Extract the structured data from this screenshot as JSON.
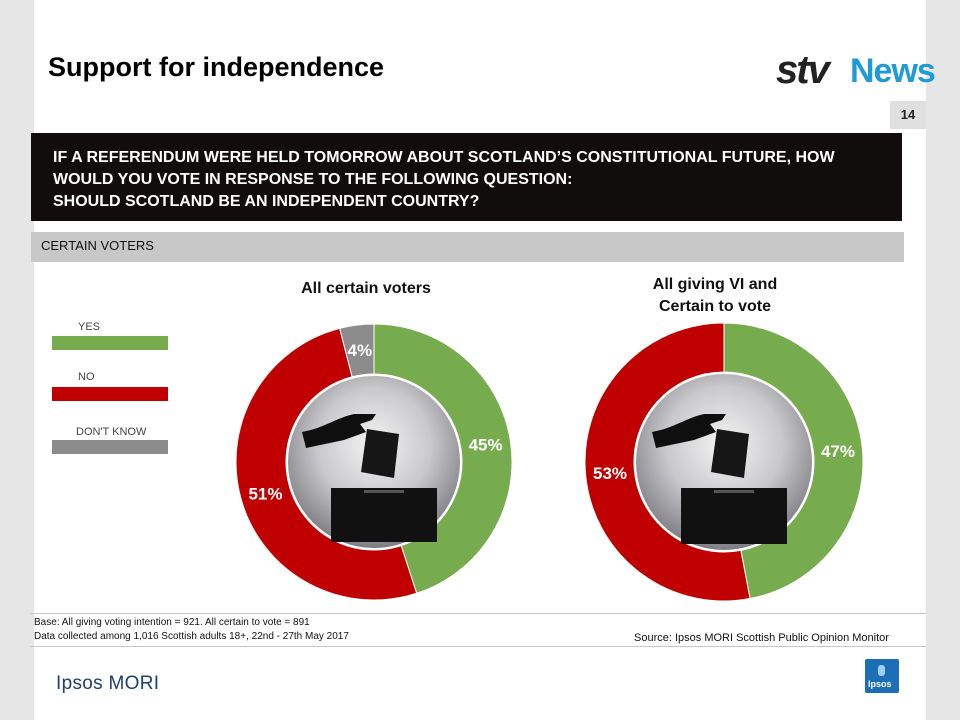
{
  "slide": {
    "title": "Support for independence",
    "page_number": "14",
    "question_lines": [
      "IF A REFERENDUM WERE HELD TOMORROW ABOUT SCOTLAND’S CONSTITUTIONAL FUTURE, HOW",
      "WOULD YOU VOTE IN RESPONSE TO THE FOLLOWING QUESTION:",
      "SHOULD SCOTLAND BE AN INDEPENDENT COUNTRY?"
    ],
    "subheader": "CERTAIN VOTERS",
    "base_lines": [
      "Base: All giving voting intention = 921. All certain to vote = 891",
      "Data collected among 1,016 Scottish adults 18+, 22nd - 27th May 2017"
    ],
    "source": "Source: Ipsos MORI Scottish Public Opinion Monitor"
  },
  "branding": {
    "stv": "stv",
    "news": "News",
    "ipsos_mori": "Ipsos MORI",
    "ipsos": "Ipsos"
  },
  "legend": [
    {
      "label": "YES",
      "color": "#76ab4e"
    },
    {
      "label": "NO",
      "color": "#c00000"
    },
    {
      "label": "DON'T KNOW",
      "color": "#8c8c8c"
    }
  ],
  "chart_data": [
    {
      "type": "pie",
      "title": "All certain voters",
      "categories": [
        "YES",
        "NO",
        "DON'T KNOW"
      ],
      "values": [
        45,
        51,
        4
      ],
      "labels": [
        "45%",
        "51%",
        "4%"
      ],
      "colors": [
        "#76ab4e",
        "#c00000",
        "#8c8c8c"
      ]
    },
    {
      "type": "pie",
      "title": "All giving VI and Certain to vote",
      "title_lines": [
        "All giving VI and",
        "Certain to vote"
      ],
      "categories": [
        "YES",
        "NO"
      ],
      "values": [
        47,
        53
      ],
      "labels": [
        "47%",
        "53%"
      ],
      "colors": [
        "#76ab4e",
        "#c00000"
      ]
    }
  ]
}
